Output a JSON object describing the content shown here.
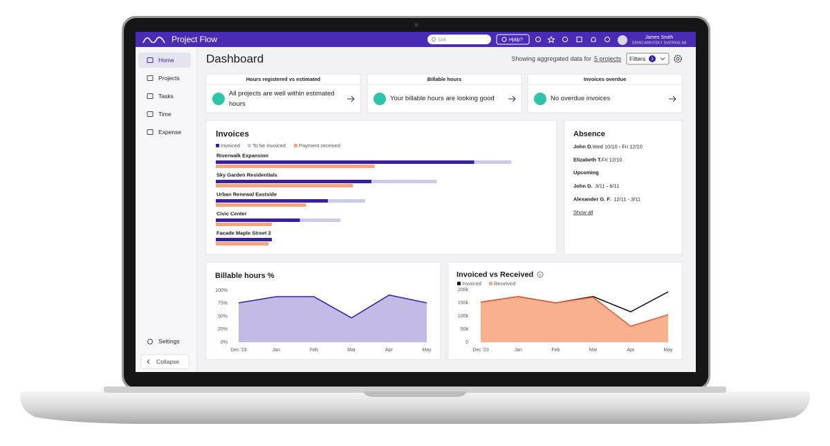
{
  "header": {
    "brand": "Project Flow",
    "search_placeholder": "Sök",
    "help": "Hjälp?",
    "user_name": "James Smith",
    "company": "DEMO ARKITEKT SVERIGE AB"
  },
  "sidebar": {
    "items": [
      "Home",
      "Projects",
      "Tasks",
      "Time",
      "Expense"
    ],
    "settings": "Settings",
    "collapse": "Collapse"
  },
  "page": {
    "title": "Dashboard",
    "summary": "Showing aggregated data for",
    "projects_link": "5 projects",
    "filters": "Filters",
    "filter_count": "1"
  },
  "status_cards": [
    {
      "title": "Hours registered vs estimated",
      "message": "All projects are well within estimated hours"
    },
    {
      "title": "Billable hours",
      "message": "Your billable hours are looking good"
    },
    {
      "title": "Invoices overdue",
      "message": "No overdue invoices"
    }
  ],
  "absence": {
    "title": "Absence",
    "current": [
      {
        "name": "John D.",
        "dates": "Wed 10/10 - Fri 12/10"
      },
      {
        "name": "Elizabeth T.",
        "dates": "Fri 12/10"
      }
    ],
    "upcoming_title": "Upcoming",
    "upcoming": [
      {
        "name": "John D.",
        "dates": "3/11 - 6/11"
      },
      {
        "name": "Alexander G. F.",
        "dates": "12/11 - 3/11"
      }
    ],
    "show_all": "Show all"
  },
  "chart_data": [
    {
      "type": "hbar",
      "title": "Invoices",
      "stacked": true,
      "xlim": [
        0,
        100
      ],
      "categories": [
        "Riverwalk Expansion",
        "Sky Garden Residentials",
        "Urban Renewal Eastside",
        "Civic Center",
        "Facade Maple Street 2"
      ],
      "series": [
        {
          "name": "Invoiced",
          "color": "#3a1f9e",
          "values": [
            83,
            50,
            36,
            27,
            18
          ],
          "stack": true
        },
        {
          "name": "To be invoiced",
          "color": "#c9cbe8",
          "values": [
            12,
            21,
            12,
            13,
            0
          ],
          "stack": true
        },
        {
          "name": "Payment received",
          "color": "#f4a57a",
          "values": [
            51,
            44,
            29,
            18,
            17
          ],
          "stack": false
        }
      ]
    },
    {
      "type": "area",
      "title": "Billable hours %",
      "categories": [
        "Dec '23",
        "Jan",
        "Feb",
        "Mar",
        "Apr",
        "May"
      ],
      "series": [
        {
          "name": "Billable hours",
          "color": "#3d22a0",
          "fill_color": "#bdb2e3",
          "values": [
            76,
            88,
            88,
            47,
            91,
            76
          ]
        }
      ],
      "ylim": [
        0,
        100
      ],
      "yticks": [
        {
          "value": 0,
          "label": "0%"
        },
        {
          "value": 25,
          "label": "25%"
        },
        {
          "value": 50,
          "label": "50%"
        },
        {
          "value": 75,
          "label": "75%"
        },
        {
          "value": 100,
          "label": "100%"
        }
      ]
    },
    {
      "type": "line",
      "title": "Invoiced vs Received",
      "categories": [
        "Dec '23",
        "Jan",
        "Feb",
        "Mar",
        "Apr",
        "May"
      ],
      "series": [
        {
          "name": "Invoiced",
          "color": "#111111",
          "values": [
            153000,
            174000,
            150000,
            174000,
            116000,
            192000
          ]
        },
        {
          "name": "Received",
          "color": "#e0603a",
          "fill_color": "#f7a982",
          "values": [
            153000,
            174000,
            150000,
            171000,
            61000,
            105000
          ]
        }
      ],
      "ylim": [
        0,
        200000
      ],
      "yticks": [
        0,
        {
          "value": 50000,
          "label": "50k"
        },
        {
          "value": 100000,
          "label": "100k"
        },
        {
          "value": 150000,
          "label": "150k"
        },
        {
          "value": 200000,
          "label": "200k"
        }
      ]
    }
  ]
}
